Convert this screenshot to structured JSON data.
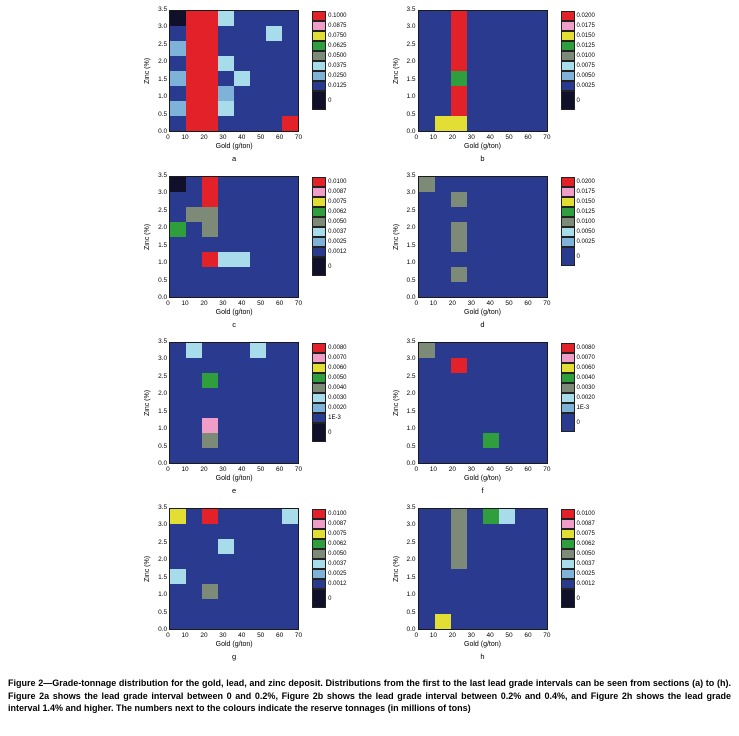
{
  "caption": {
    "text": "Figure 2—Grade-tonnage distribution for the gold, lead, and zinc deposit. Distributions from the first to the last lead grade intervals can be seen from sections (a) to (h). Figure 2a shows the lead grade interval between 0 and 0.2%, Figure 2b shows the lead grade interval between 0.2% and 0.4%, and Figure 2h shows the lead grade interval 1.4% and higher. The numbers next to the colours indicate the reserve tonnages (in millions of tons)"
  },
  "axes": {
    "xlabel": "Gold (g/ton)",
    "ylabel": "Zinc (%)",
    "x_ticks": [
      "0",
      "10",
      "20",
      "30",
      "40",
      "50",
      "60",
      "70"
    ],
    "y_ticks": [
      "3.5",
      "3.0",
      "2.5",
      "2.0",
      "1.5",
      "1.0",
      "0.5",
      "0.0"
    ]
  },
  "palette": {
    "codes": [
      "R",
      "P",
      "Y",
      "G",
      "O",
      "C",
      "L",
      "B",
      "K"
    ],
    "colors": {
      "R": "#e32128",
      "P": "#f09ec8",
      "Y": "#e3de33",
      "G": "#2f9e3c",
      "O": "#7d8a78",
      "C": "#a9dcea",
      "L": "#7fb2d8",
      "B": "#2a3a8e",
      "K": "#10102a"
    }
  },
  "chart_data": [
    {
      "type": "heatmap",
      "panel": "a",
      "x": [
        0,
        10,
        20,
        30,
        40,
        50,
        60,
        70
      ],
      "y": [
        3.5,
        3.0,
        2.5,
        2.0,
        1.5,
        1.0,
        0.5,
        0.0
      ],
      "legend_values": [
        "0.1000",
        "0.0875",
        "0.0750",
        "0.0625",
        "0.0500",
        "0.0375",
        "0.0250",
        "0.0125",
        "0"
      ],
      "rows": [
        "KRRCBBBB",
        "BRRBBBCB",
        "LRRBBBBB",
        "BRRCBBBB",
        "LRRBCBBB",
        "BRRLBBBB",
        "LRRCBBBB",
        "BRRBBBBR"
      ]
    },
    {
      "type": "heatmap",
      "panel": "b",
      "x": [
        0,
        10,
        20,
        30,
        40,
        50,
        60,
        70
      ],
      "y": [
        3.5,
        3.0,
        2.5,
        2.0,
        1.5,
        1.0,
        0.5,
        0.0
      ],
      "legend_values": [
        "0.0200",
        "0.0175",
        "0.0150",
        "0.0125",
        "0.0100",
        "0.0075",
        "0.0050",
        "0.0025",
        "0"
      ],
      "rows": [
        "BBRBBBBB",
        "BBRBBBBB",
        "BBRBBBBB",
        "BBRBBBBB",
        "BBGBBBBB",
        "BBRBBBBB",
        "BBRBBBBB",
        "BYYBBBBB"
      ]
    },
    {
      "type": "heatmap",
      "panel": "c",
      "x": [
        0,
        10,
        20,
        30,
        40,
        50,
        60,
        70
      ],
      "y": [
        3.5,
        3.0,
        2.5,
        2.0,
        1.5,
        1.0,
        0.5,
        0.0
      ],
      "legend_values": [
        "0.0100",
        "0.0087",
        "0.0075",
        "0.0062",
        "0.0050",
        "0.0037",
        "0.0025",
        "0.0012",
        "0"
      ],
      "rows": [
        "KBRBBBBB",
        "BBRBBBBB",
        "BOOBBBBB",
        "GBOBBBBB",
        "BBBBBBBB",
        "BBRCCBBB",
        "BBBBBBBB",
        "BBBBBBBB"
      ]
    },
    {
      "type": "heatmap",
      "panel": "d",
      "x": [
        0,
        10,
        20,
        30,
        40,
        50,
        60,
        70
      ],
      "y": [
        3.5,
        3.0,
        2.5,
        2.0,
        1.5,
        1.0,
        0.5,
        0.0
      ],
      "legend_values": [
        "0.0200",
        "0.0175",
        "0.0150",
        "0.0125",
        "0.0100",
        "0.0050",
        "0.0025",
        "0"
      ],
      "rows": [
        "OBBBBBBB",
        "BBOBBBBB",
        "BBBBBBBB",
        "BBOBBBBB",
        "BBOBBBBB",
        "BBBBBBBB",
        "BBOBBBBB",
        "BBBBBBBB"
      ]
    },
    {
      "type": "heatmap",
      "panel": "e",
      "x": [
        0,
        10,
        20,
        30,
        40,
        50,
        60,
        70
      ],
      "y": [
        3.5,
        3.0,
        2.5,
        2.0,
        1.5,
        1.0,
        0.5,
        0.0
      ],
      "legend_values": [
        "0.0080",
        "0.0070",
        "0.0060",
        "0.0050",
        "0.0040",
        "0.0030",
        "0.0020",
        "1E-3",
        "0"
      ],
      "rows": [
        "BCBBBCBB",
        "BBBBBBBB",
        "BBGBBBBB",
        "BBBBBBBB",
        "BBBBBBBB",
        "BBPBBBBB",
        "BBOBBBBB",
        "BBBBBBBB"
      ]
    },
    {
      "type": "heatmap",
      "panel": "f",
      "x": [
        0,
        10,
        20,
        30,
        40,
        50,
        60,
        70
      ],
      "y": [
        3.5,
        3.0,
        2.5,
        2.0,
        1.5,
        1.0,
        0.5,
        0.0
      ],
      "legend_values": [
        "0.0080",
        "0.0070",
        "0.0060",
        "0.0040",
        "0.0030",
        "0.0020",
        "1E-3",
        "0"
      ],
      "rows": [
        "OBBBBBBB",
        "BBRBBBBB",
        "BBBBBBBB",
        "BBBBBBBB",
        "BBBBBBBB",
        "BBBBBBBB",
        "BBBBGBBB",
        "BBBBBBBB"
      ]
    },
    {
      "type": "heatmap",
      "panel": "g",
      "x": [
        0,
        10,
        20,
        30,
        40,
        50,
        60,
        70
      ],
      "y": [
        3.5,
        3.0,
        2.5,
        2.0,
        1.5,
        1.0,
        0.5,
        0.0
      ],
      "legend_values": [
        "0.0100",
        "0.0087",
        "0.0075",
        "0.0062",
        "0.0050",
        "0.0037",
        "0.0025",
        "0.0012",
        "0"
      ],
      "rows": [
        "YBRBBBBC",
        "BBBBBBBB",
        "BBBCBBBB",
        "BBBBBBBB",
        "CBBBBBBB",
        "BBOBBBBB",
        "BBBBBBBB",
        "BBBBBBBB"
      ]
    },
    {
      "type": "heatmap",
      "panel": "h",
      "x": [
        0,
        10,
        20,
        30,
        40,
        50,
        60,
        70
      ],
      "y": [
        3.5,
        3.0,
        2.5,
        2.0,
        1.5,
        1.0,
        0.5,
        0.0
      ],
      "legend_values": [
        "0.0100",
        "0.0087",
        "0.0075",
        "0.0062",
        "0.0050",
        "0.0037",
        "0.0025",
        "0.0012",
        "0"
      ],
      "rows": [
        "BBOBGCBB",
        "BBOBBBBB",
        "BBOBBBBB",
        "BBOBBBBB",
        "BBBBBBBB",
        "BBBBBBBB",
        "BBBBBBBB",
        "BYBBBBBB"
      ]
    }
  ]
}
